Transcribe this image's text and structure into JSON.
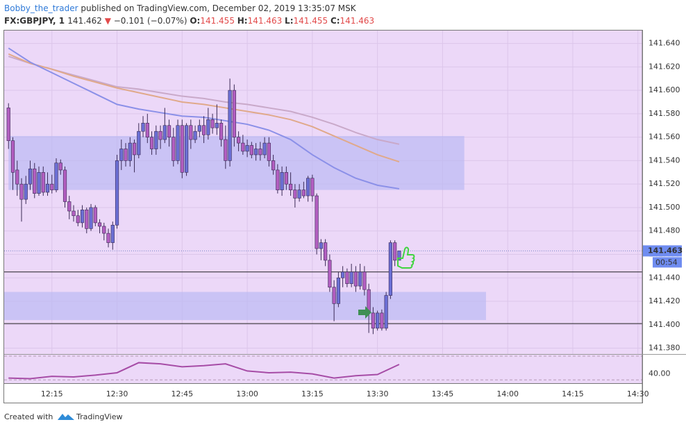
{
  "header": {
    "author": "Bobby_the_trader",
    "published": " published on TradingView.com, December 02, 2019 13:35:07 MSK",
    "symbol": "FX:GBPJPY, 1 ",
    "price": "141.462 ",
    "arrow": "▼",
    "change": " −0.101 (−0.07%) ",
    "o_label": "O:",
    "o": "141.455 ",
    "h_label": "H:",
    "h": "141.463 ",
    "l_label": "L:",
    "l": "141.455 ",
    "c_label": "C:",
    "c": "141.463"
  },
  "footer": {
    "created": "Created with",
    "brand": "TradingView"
  },
  "chart_data": {
    "type": "candlestick",
    "xlim": [
      "12:04",
      "14:31"
    ],
    "ylim": [
      141.375,
      141.651
    ],
    "xticks": [
      "12:15",
      "12:30",
      "12:45",
      "13:00",
      "13:15",
      "13:30",
      "13:45",
      "14:00",
      "14:15",
      "14:30"
    ],
    "yticks": [
      {
        "value": 141.38,
        "label": "141.380"
      },
      {
        "value": 141.4,
        "label": "141.400"
      },
      {
        "value": 141.42,
        "label": "141.420"
      },
      {
        "value": 141.44,
        "label": "141.440"
      },
      {
        "value": 141.46,
        "label": "141.460"
      },
      {
        "value": 141.48,
        "label": "141.480"
      },
      {
        "value": 141.5,
        "label": "141.500"
      },
      {
        "value": 141.52,
        "label": "141.520"
      },
      {
        "value": 141.54,
        "label": "141.540"
      },
      {
        "value": 141.56,
        "label": "141.560"
      },
      {
        "value": 141.58,
        "label": "141.580"
      },
      {
        "value": 141.6,
        "label": "141.600"
      },
      {
        "value": 141.62,
        "label": "141.620"
      },
      {
        "value": 141.64,
        "label": "141.640"
      }
    ],
    "grid": true,
    "up_color": "#6b6fd4",
    "down_color": "#b25ec0",
    "last": {
      "value": 141.463,
      "label": "141.463"
    },
    "countdown": "00:54",
    "zones": [
      {
        "from": "12:05",
        "to": "13:50",
        "top": 141.561,
        "bottom": 141.515
      },
      {
        "from": "12:04",
        "to": "13:55",
        "top": 141.428,
        "bottom": 141.404
      }
    ],
    "hlines": [
      141.445,
      141.401
    ],
    "candles": [
      {
        "t": "12:05",
        "o": 141.585,
        "h": 141.589,
        "l": 141.55,
        "c": 141.557
      },
      {
        "t": "12:06",
        "o": 141.557,
        "h": 141.56,
        "l": 141.515,
        "c": 141.53
      },
      {
        "t": "12:07",
        "o": 141.532,
        "h": 141.54,
        "l": 141.51,
        "c": 141.52
      },
      {
        "t": "12:08",
        "o": 141.52,
        "h": 141.525,
        "l": 141.488,
        "c": 141.507
      },
      {
        "t": "12:09",
        "o": 141.507,
        "h": 141.527,
        "l": 141.503,
        "c": 141.52
      },
      {
        "t": "12:10",
        "o": 141.52,
        "h": 141.54,
        "l": 141.515,
        "c": 141.533
      },
      {
        "t": "12:11",
        "o": 141.533,
        "h": 141.538,
        "l": 141.508,
        "c": 141.512
      },
      {
        "t": "12:12",
        "o": 141.512,
        "h": 141.535,
        "l": 141.51,
        "c": 141.53
      },
      {
        "t": "12:13",
        "o": 141.53,
        "h": 141.535,
        "l": 141.51,
        "c": 141.513
      },
      {
        "t": "12:14",
        "o": 141.513,
        "h": 141.53,
        "l": 141.51,
        "c": 141.52
      },
      {
        "t": "12:15",
        "o": 141.52,
        "h": 141.528,
        "l": 141.512,
        "c": 141.515
      },
      {
        "t": "12:16",
        "o": 141.515,
        "h": 141.542,
        "l": 141.513,
        "c": 141.538
      },
      {
        "t": "12:17",
        "o": 141.538,
        "h": 141.541,
        "l": 141.528,
        "c": 141.532
      },
      {
        "t": "12:18",
        "o": 141.532,
        "h": 141.535,
        "l": 141.5,
        "c": 141.505
      },
      {
        "t": "12:19",
        "o": 141.505,
        "h": 141.51,
        "l": 141.49,
        "c": 141.497
      },
      {
        "t": "12:20",
        "o": 141.497,
        "h": 141.502,
        "l": 141.488,
        "c": 141.493
      },
      {
        "t": "12:21",
        "o": 141.493,
        "h": 141.498,
        "l": 141.484,
        "c": 141.487
      },
      {
        "t": "12:22",
        "o": 141.487,
        "h": 141.502,
        "l": 141.483,
        "c": 141.498
      },
      {
        "t": "12:23",
        "o": 141.498,
        "h": 141.5,
        "l": 141.478,
        "c": 141.482
      },
      {
        "t": "12:24",
        "o": 141.482,
        "h": 141.503,
        "l": 141.48,
        "c": 141.5
      },
      {
        "t": "12:25",
        "o": 141.5,
        "h": 141.502,
        "l": 141.484,
        "c": 141.487
      },
      {
        "t": "12:26",
        "o": 141.487,
        "h": 141.49,
        "l": 141.478,
        "c": 141.484
      },
      {
        "t": "12:27",
        "o": 141.484,
        "h": 141.487,
        "l": 141.472,
        "c": 141.478
      },
      {
        "t": "12:28",
        "o": 141.478,
        "h": 141.482,
        "l": 141.466,
        "c": 141.47
      },
      {
        "t": "12:29",
        "o": 141.47,
        "h": 141.488,
        "l": 141.464,
        "c": 141.485
      },
      {
        "t": "12:30",
        "o": 141.485,
        "h": 141.545,
        "l": 141.482,
        "c": 141.54
      },
      {
        "t": "12:31",
        "o": 141.54,
        "h": 141.558,
        "l": 141.532,
        "c": 141.55
      },
      {
        "t": "12:32",
        "o": 141.55,
        "h": 141.555,
        "l": 141.535,
        "c": 141.54
      },
      {
        "t": "12:33",
        "o": 141.54,
        "h": 141.56,
        "l": 141.535,
        "c": 141.555
      },
      {
        "t": "12:34",
        "o": 141.555,
        "h": 141.558,
        "l": 141.53,
        "c": 141.545
      },
      {
        "t": "12:35",
        "o": 141.545,
        "h": 141.572,
        "l": 141.542,
        "c": 141.565
      },
      {
        "t": "12:36",
        "o": 141.565,
        "h": 141.578,
        "l": 141.56,
        "c": 141.572
      },
      {
        "t": "12:37",
        "o": 141.572,
        "h": 141.58,
        "l": 141.555,
        "c": 141.56
      },
      {
        "t": "12:38",
        "o": 141.56,
        "h": 141.565,
        "l": 141.545,
        "c": 141.55
      },
      {
        "t": "12:39",
        "o": 141.55,
        "h": 141.57,
        "l": 141.545,
        "c": 141.565
      },
      {
        "t": "12:40",
        "o": 141.565,
        "h": 141.57,
        "l": 141.55,
        "c": 141.558
      },
      {
        "t": "12:41",
        "o": 141.558,
        "h": 141.585,
        "l": 141.555,
        "c": 141.57
      },
      {
        "t": "12:42",
        "o": 141.57,
        "h": 141.575,
        "l": 141.552,
        "c": 141.56
      },
      {
        "t": "12:43",
        "o": 141.56,
        "h": 141.568,
        "l": 141.535,
        "c": 141.54
      },
      {
        "t": "12:44",
        "o": 141.54,
        "h": 141.575,
        "l": 141.537,
        "c": 141.57
      },
      {
        "t": "12:45",
        "o": 141.57,
        "h": 141.575,
        "l": 141.525,
        "c": 141.53
      },
      {
        "t": "12:46",
        "o": 141.53,
        "h": 141.572,
        "l": 141.527,
        "c": 141.57
      },
      {
        "t": "12:47",
        "o": 141.57,
        "h": 141.575,
        "l": 141.55,
        "c": 141.558
      },
      {
        "t": "12:48",
        "o": 141.558,
        "h": 141.57,
        "l": 141.555,
        "c": 141.565
      },
      {
        "t": "12:49",
        "o": 141.565,
        "h": 141.575,
        "l": 141.56,
        "c": 141.57
      },
      {
        "t": "12:50",
        "o": 141.57,
        "h": 141.578,
        "l": 141.555,
        "c": 141.562
      },
      {
        "t": "12:51",
        "o": 141.562,
        "h": 141.585,
        "l": 141.558,
        "c": 141.575
      },
      {
        "t": "12:52",
        "o": 141.575,
        "h": 141.58,
        "l": 141.563,
        "c": 141.568
      },
      {
        "t": "12:53",
        "o": 141.568,
        "h": 141.588,
        "l": 141.562,
        "c": 141.572
      },
      {
        "t": "12:54",
        "o": 141.572,
        "h": 141.575,
        "l": 141.552,
        "c": 141.558
      },
      {
        "t": "12:55",
        "o": 141.558,
        "h": 141.57,
        "l": 141.533,
        "c": 141.54
      },
      {
        "t": "12:56",
        "o": 141.54,
        "h": 141.61,
        "l": 141.535,
        "c": 141.6
      },
      {
        "t": "12:57",
        "o": 141.6,
        "h": 141.605,
        "l": 141.552,
        "c": 141.56
      },
      {
        "t": "12:58",
        "o": 141.56,
        "h": 141.565,
        "l": 141.548,
        "c": 141.555
      },
      {
        "t": "12:59",
        "o": 141.555,
        "h": 141.562,
        "l": 141.545,
        "c": 141.548
      },
      {
        "t": "13:00",
        "o": 141.548,
        "h": 141.558,
        "l": 141.543,
        "c": 141.553
      },
      {
        "t": "13:01",
        "o": 141.553,
        "h": 141.556,
        "l": 141.542,
        "c": 141.545
      },
      {
        "t": "13:02",
        "o": 141.545,
        "h": 141.555,
        "l": 141.54,
        "c": 141.55
      },
      {
        "t": "13:03",
        "o": 141.55,
        "h": 141.556,
        "l": 141.54,
        "c": 141.545
      },
      {
        "t": "13:04",
        "o": 141.545,
        "h": 141.56,
        "l": 141.542,
        "c": 141.555
      },
      {
        "t": "13:05",
        "o": 141.555,
        "h": 141.56,
        "l": 141.535,
        "c": 141.54
      },
      {
        "t": "13:06",
        "o": 141.54,
        "h": 141.545,
        "l": 141.528,
        "c": 141.532
      },
      {
        "t": "13:07",
        "o": 141.532,
        "h": 141.537,
        "l": 141.512,
        "c": 141.515
      },
      {
        "t": "13:08",
        "o": 141.515,
        "h": 141.535,
        "l": 141.51,
        "c": 141.53
      },
      {
        "t": "13:09",
        "o": 141.53,
        "h": 141.535,
        "l": 141.515,
        "c": 141.52
      },
      {
        "t": "13:10",
        "o": 141.52,
        "h": 141.53,
        "l": 141.51,
        "c": 141.515
      },
      {
        "t": "13:11",
        "o": 141.515,
        "h": 141.52,
        "l": 141.5,
        "c": 141.508
      },
      {
        "t": "13:12",
        "o": 141.508,
        "h": 141.52,
        "l": 141.505,
        "c": 141.515
      },
      {
        "t": "13:13",
        "o": 141.515,
        "h": 141.522,
        "l": 141.508,
        "c": 141.51
      },
      {
        "t": "13:14",
        "o": 141.51,
        "h": 141.527,
        "l": 141.505,
        "c": 141.525
      },
      {
        "t": "13:15",
        "o": 141.525,
        "h": 141.528,
        "l": 141.505,
        "c": 141.51
      },
      {
        "t": "13:16",
        "o": 141.51,
        "h": 141.512,
        "l": 141.46,
        "c": 141.465
      },
      {
        "t": "13:17",
        "o": 141.465,
        "h": 141.473,
        "l": 141.455,
        "c": 141.47
      },
      {
        "t": "13:18",
        "o": 141.47,
        "h": 141.473,
        "l": 141.45,
        "c": 141.455
      },
      {
        "t": "13:19",
        "o": 141.455,
        "h": 141.46,
        "l": 141.428,
        "c": 141.432
      },
      {
        "t": "13:20",
        "o": 141.432,
        "h": 141.438,
        "l": 141.403,
        "c": 141.418
      },
      {
        "t": "13:21",
        "o": 141.418,
        "h": 141.445,
        "l": 141.415,
        "c": 141.44
      },
      {
        "t": "13:22",
        "o": 141.44,
        "h": 141.45,
        "l": 141.432,
        "c": 141.445
      },
      {
        "t": "13:23",
        "o": 141.445,
        "h": 141.448,
        "l": 141.432,
        "c": 141.435
      },
      {
        "t": "13:24",
        "o": 141.435,
        "h": 141.452,
        "l": 141.432,
        "c": 141.445
      },
      {
        "t": "13:25",
        "o": 141.445,
        "h": 141.45,
        "l": 141.428,
        "c": 141.433
      },
      {
        "t": "13:26",
        "o": 141.433,
        "h": 141.452,
        "l": 141.43,
        "c": 141.445
      },
      {
        "t": "13:27",
        "o": 141.445,
        "h": 141.45,
        "l": 141.425,
        "c": 141.43
      },
      {
        "t": "13:28",
        "o": 141.43,
        "h": 141.435,
        "l": 141.393,
        "c": 141.41
      },
      {
        "t": "13:29",
        "o": 141.41,
        "h": 141.415,
        "l": 141.392,
        "c": 141.397
      },
      {
        "t": "13:30",
        "o": 141.397,
        "h": 141.412,
        "l": 141.395,
        "c": 141.41
      },
      {
        "t": "13:31",
        "o": 141.41,
        "h": 141.413,
        "l": 141.395,
        "c": 141.397
      },
      {
        "t": "13:32",
        "o": 141.397,
        "h": 141.428,
        "l": 141.395,
        "c": 141.425
      },
      {
        "t": "13:33",
        "o": 141.425,
        "h": 141.472,
        "l": 141.422,
        "c": 141.47
      },
      {
        "t": "13:34",
        "o": 141.47,
        "h": 141.472,
        "l": 141.45,
        "c": 141.455
      },
      {
        "t": "13:35",
        "o": 141.455,
        "h": 141.463,
        "l": 141.455,
        "c": 141.463
      }
    ],
    "ma_x": [
      "12:05",
      "12:10",
      "12:15",
      "12:20",
      "12:25",
      "12:30",
      "12:35",
      "12:40",
      "12:45",
      "12:50",
      "12:55",
      "13:00",
      "13:05",
      "13:10",
      "13:15",
      "13:20",
      "13:25",
      "13:30",
      "13:35"
    ],
    "ma": [
      {
        "color": "#c9a9c9",
        "values": [
          141.629,
          141.623,
          141.618,
          141.613,
          141.608,
          141.603,
          141.601,
          141.598,
          141.595,
          141.593,
          141.59,
          141.588,
          141.585,
          141.582,
          141.577,
          141.571,
          141.564,
          141.558,
          141.554
        ]
      },
      {
        "color": "#e0a98a",
        "values": [
          141.631,
          141.623,
          141.618,
          141.612,
          141.607,
          141.602,
          141.598,
          141.594,
          141.59,
          141.588,
          141.585,
          141.582,
          141.579,
          141.575,
          141.569,
          141.561,
          141.553,
          141.545,
          141.539
        ]
      },
      {
        "color": "#8b90e8",
        "values": [
          141.636,
          141.624,
          141.615,
          141.606,
          141.597,
          141.588,
          141.584,
          141.581,
          141.578,
          141.577,
          141.574,
          141.571,
          141.566,
          141.558,
          141.545,
          141.534,
          141.525,
          141.519,
          141.516
        ]
      }
    ],
    "oscillator": {
      "color": "#a64ca6",
      "ylim": [
        24.4,
        72.4
      ],
      "yticks": [
        {
          "value": 40,
          "label": "40.00"
        }
      ],
      "levels": [
        70,
        30
      ],
      "x": [
        "12:05",
        "12:10",
        "12:15",
        "12:20",
        "12:25",
        "12:30",
        "12:35",
        "12:40",
        "12:45",
        "12:50",
        "12:55",
        "13:00",
        "13:05",
        "13:10",
        "13:15",
        "13:20",
        "13:25",
        "13:30",
        "13:35"
      ],
      "values": [
        33,
        32,
        36,
        35,
        38,
        42,
        59,
        57,
        52,
        54,
        57,
        45,
        42,
        43,
        40,
        33,
        37,
        39,
        56
      ]
    }
  }
}
